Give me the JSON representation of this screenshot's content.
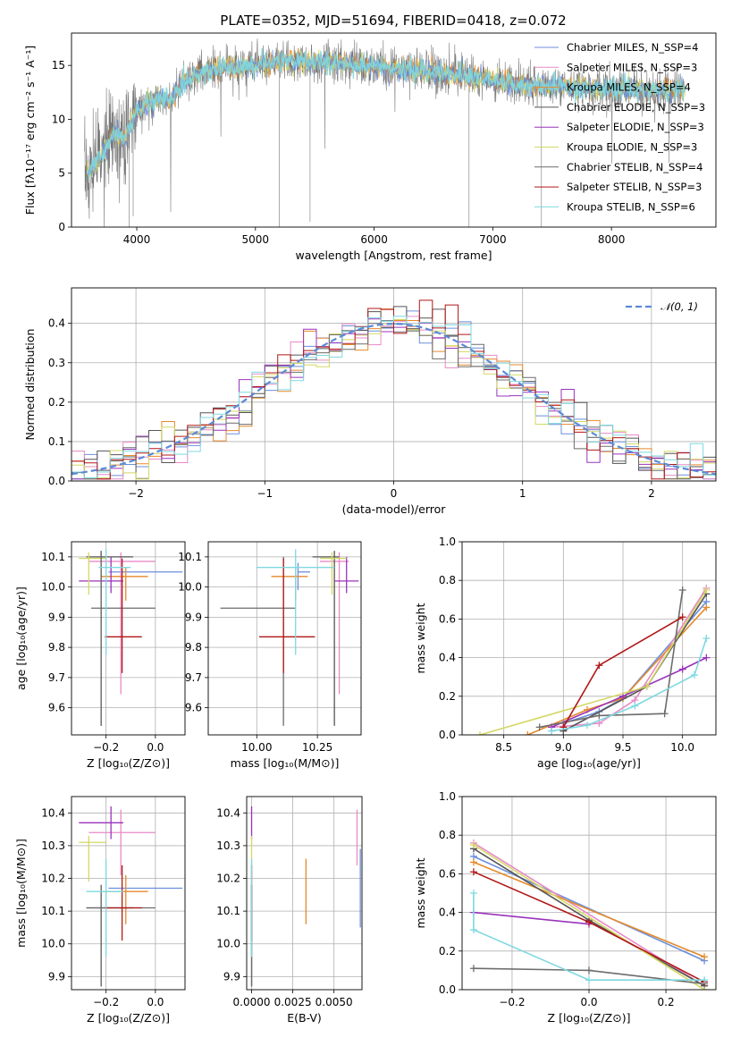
{
  "colors": [
    "#6b8fdc",
    "#e88ac7",
    "#e58a2c",
    "#555555",
    "#9933bb",
    "#d4d864",
    "#6c6c6c",
    "#b01818",
    "#7fd8e0"
  ],
  "chart_data": [
    {
      "id": "spectrum",
      "type": "line",
      "title": "PLATE=0352, MJD=51694, FIBERID=0418, z=0.072",
      "xlabel": "wavelength [Angstrom, rest frame]",
      "ylabel": "Flux [fλ10⁻¹⁷ erg cm⁻² s⁻¹ A⁻¹]",
      "xlim": [
        3450,
        8880
      ],
      "ylim": [
        0,
        18
      ],
      "xticks": [
        "4000",
        "5000",
        "6000",
        "7000",
        "8000"
      ],
      "yticks": [
        "0",
        "5",
        "10",
        "15"
      ],
      "grid": false,
      "legend_position": "right",
      "legend": [
        "Chabrier MILES, N_SSP=4",
        "Salpeter MILES, N_SSP=3",
        "Kroupa MILES, N_SSP=4",
        "Chabrier ELODIE, N_SSP=3",
        "Salpeter ELODIE, N_SSP=3",
        "Kroupa ELODIE, N_SSP=3",
        "Chabrier STELIB, N_SSP=4",
        "Salpeter STELIB, N_SSP=3",
        "Kroupa STELIB, N_SSP=6"
      ],
      "continuum_x": [
        3550,
        3700,
        3800,
        3900,
        4000,
        4100,
        4200,
        4300,
        4400,
        4500,
        4700,
        5000,
        5300,
        5500,
        5800,
        6000,
        6300,
        6500,
        6800,
        7000,
        7200,
        7400,
        7600,
        7800,
        8000,
        8200,
        8400,
        8600
      ],
      "continuum_y": [
        4.5,
        6.5,
        8.5,
        8.2,
        10.8,
        11.5,
        12.0,
        11.8,
        13.6,
        14.2,
        14.8,
        15.0,
        15.5,
        15.3,
        15.2,
        14.8,
        14.6,
        14.3,
        14.0,
        13.6,
        13.2,
        13.1,
        13.0,
        12.9,
        12.8,
        12.8,
        12.6,
        12.9
      ]
    },
    {
      "id": "residual-hist",
      "type": "histogram",
      "xlabel": "(data-model)/error",
      "ylabel": "Normed distribution",
      "xlim": [
        -2.5,
        2.5
      ],
      "ylim": [
        0,
        0.49
      ],
      "xticks": [
        "−2",
        "−1",
        "0",
        "1",
        "2"
      ],
      "yticks": [
        "0.0",
        "0.1",
        "0.2",
        "0.3",
        "0.4"
      ],
      "grid": true,
      "legend_position": "upper right",
      "legend": [
        "𝒩(0, 1)"
      ],
      "bin_width": 0.1
    },
    {
      "id": "age-vs-Z",
      "type": "errorbar",
      "xlabel": "Z [log₁₀(Z/Z⊙)]",
      "ylabel": "age  [log₁₀(age/yr)]",
      "xlim": [
        -0.34,
        0.12
      ],
      "ylim": [
        9.51,
        10.15
      ],
      "xticks": [
        "−0.2",
        "0.0"
      ],
      "yticks": [
        "9.6",
        "9.7",
        "9.8",
        "9.9",
        "10.0",
        "10.1"
      ],
      "grid": true,
      "points": [
        {
          "x": -0.04,
          "y": 10.05,
          "xerr": [
            0.15,
            0.15
          ],
          "yerr": [
            0.0,
            0.0
          ],
          "c": 0
        },
        {
          "x": -0.14,
          "y": 10.085,
          "xerr": [
            0.13,
            0.14
          ],
          "yerr": [
            0.44,
            0.03
          ],
          "c": 1
        },
        {
          "x": -0.12,
          "y": 10.035,
          "xerr": [
            0.1,
            0.09
          ],
          "yerr": [
            0.08,
            0.03
          ],
          "c": 2
        },
        {
          "x": -0.22,
          "y": 10.1,
          "xerr": [
            0.06,
            0.13
          ],
          "yerr": [
            0.56,
            0.02
          ],
          "c": 3
        },
        {
          "x": -0.18,
          "y": 10.02,
          "xerr": [
            0.13,
            0.05
          ],
          "yerr": [
            0.04,
            0.08
          ],
          "c": 4
        },
        {
          "x": -0.27,
          "y": 10.095,
          "xerr": [
            0.04,
            0.07
          ],
          "yerr": [
            0.12,
            0.02
          ],
          "c": 5
        },
        {
          "x": -0.22,
          "y": 9.93,
          "xerr": [
            0.04,
            0.22
          ],
          "yerr": [
            0.39,
            0.17
          ],
          "c": 6
        },
        {
          "x": -0.135,
          "y": 9.835,
          "xerr": [
            0.07,
            0.08
          ],
          "yerr": [
            0.12,
            0.26
          ],
          "c": 7
        },
        {
          "x": -0.2,
          "y": 10.065,
          "xerr": [
            0.03,
            0.1
          ],
          "yerr": [
            0.29,
            0.06
          ],
          "c": 8
        }
      ]
    },
    {
      "id": "age-vs-mass",
      "type": "errorbar",
      "xlabel": "mass [log₁₀(M/M⊙)]",
      "xlim": [
        9.8,
        10.43
      ],
      "ylim": [
        9.51,
        10.15
      ],
      "xticks": [
        "10.00",
        "10.25"
      ],
      "yticks": [
        "9.6",
        "9.7",
        "9.8",
        "9.9",
        "10.0",
        "10.1"
      ],
      "grid": true,
      "points": [
        {
          "x": 10.17,
          "y": 10.05,
          "xerr": [
            0.0,
            0.05
          ],
          "yerr": [
            0.06,
            0.03
          ],
          "c": 0
        },
        {
          "x": 10.34,
          "y": 10.085,
          "xerr": [
            0.08,
            0.04
          ],
          "yerr": [
            0.44,
            0.03
          ],
          "c": 1
        },
        {
          "x": 10.16,
          "y": 10.035,
          "xerr": [
            0.1,
            0.05
          ],
          "yerr": [
            0.08,
            0.03
          ],
          "c": 2
        },
        {
          "x": 10.32,
          "y": 10.1,
          "xerr": [
            0.09,
            0.02
          ],
          "yerr": [
            0.56,
            0.02
          ],
          "c": 3
        },
        {
          "x": 10.37,
          "y": 10.02,
          "xerr": [
            0.05,
            0.05
          ],
          "yerr": [
            0.04,
            0.08
          ],
          "c": 4
        },
        {
          "x": 10.31,
          "y": 10.095,
          "xerr": [
            0.05,
            0.06
          ],
          "yerr": [
            0.12,
            0.02
          ],
          "c": 5
        },
        {
          "x": 10.11,
          "y": 9.93,
          "xerr": [
            0.26,
            0.05
          ],
          "yerr": [
            0.39,
            0.17
          ],
          "c": 6
        },
        {
          "x": 10.11,
          "y": 9.835,
          "xerr": [
            0.1,
            0.13
          ],
          "yerr": [
            0.12,
            0.26
          ],
          "c": 7
        },
        {
          "x": 10.16,
          "y": 10.065,
          "xerr": [
            0.16,
            0.16
          ],
          "yerr": [
            0.29,
            0.06
          ],
          "c": 8
        }
      ]
    },
    {
      "id": "mass-weight-vs-age",
      "type": "line",
      "xlabel": "age  [log₁₀(age/yr)]",
      "ylabel": "mass weight",
      "xlim": [
        8.15,
        10.28
      ],
      "ylim": [
        0,
        1
      ],
      "xticks": [
        "8.5",
        "9.0",
        "9.5",
        "10.0"
      ],
      "yticks": [
        "0.0",
        "0.2",
        "0.4",
        "0.6",
        "0.8",
        "1.0"
      ],
      "grid": true,
      "series": [
        {
          "c": 0,
          "x": [
            9.0,
            9.3,
            9.5,
            10.2
          ],
          "y": [
            0.06,
            0.12,
            0.19,
            0.69
          ]
        },
        {
          "c": 1,
          "x": [
            8.9,
            9.3,
            9.6,
            10.2
          ],
          "y": [
            0.04,
            0.06,
            0.18,
            0.76
          ]
        },
        {
          "c": 2,
          "x": [
            8.7,
            9.2,
            9.5,
            10.2
          ],
          "y": [
            0.0,
            0.13,
            0.19,
            0.66
          ]
        },
        {
          "c": 3,
          "x": [
            9.0,
            9.7,
            10.2
          ],
          "y": [
            0.02,
            0.25,
            0.73
          ]
        },
        {
          "c": 4,
          "x": [
            8.9,
            9.5,
            10.0,
            10.2
          ],
          "y": [
            0.04,
            0.2,
            0.34,
            0.4
          ]
        },
        {
          "c": 5,
          "x": [
            8.3,
            9.7,
            10.2
          ],
          "y": [
            0.0,
            0.25,
            0.75
          ]
        },
        {
          "c": 6,
          "x": [
            8.8,
            9.3,
            9.85,
            10.0
          ],
          "y": [
            0.04,
            0.1,
            0.11,
            0.75
          ]
        },
        {
          "c": 7,
          "x": [
            9.0,
            9.3,
            10.0
          ],
          "y": [
            0.04,
            0.36,
            0.61
          ]
        },
        {
          "c": 8,
          "x": [
            8.9,
            9.2,
            9.6,
            10.1,
            10.2
          ],
          "y": [
            0.02,
            0.05,
            0.15,
            0.31,
            0.5
          ]
        }
      ]
    },
    {
      "id": "mass-vs-Z",
      "type": "errorbar",
      "xlabel": "Z [log₁₀(Z/Z⊙)]",
      "ylabel": "mass [log₁₀(M/M⊙)]",
      "xlim": [
        -0.34,
        0.12
      ],
      "ylim": [
        9.86,
        10.45
      ],
      "xticks": [
        "−0.2",
        "0.0"
      ],
      "yticks": [
        "9.9",
        "10.0",
        "10.1",
        "10.2",
        "10.3",
        "10.4"
      ],
      "grid": true,
      "points": [
        {
          "x": -0.04,
          "y": 10.17,
          "xerr": [
            0.15,
            0.15
          ],
          "yerr": [
            0.0,
            0.0
          ],
          "c": 0
        },
        {
          "x": -0.14,
          "y": 10.34,
          "xerr": [
            0.13,
            0.14
          ],
          "yerr": [
            0.13,
            0.07
          ],
          "c": 1
        },
        {
          "x": -0.12,
          "y": 10.16,
          "xerr": [
            0.1,
            0.09
          ],
          "yerr": [
            0.1,
            0.05
          ],
          "c": 2
        },
        {
          "x": -0.22,
          "y": 10.11,
          "xerr": [
            0.06,
            0.13
          ],
          "yerr": [
            0.24,
            0.07
          ],
          "c": 3
        },
        {
          "x": -0.18,
          "y": 10.37,
          "xerr": [
            0.13,
            0.05
          ],
          "yerr": [
            0.05,
            0.05
          ],
          "c": 4
        },
        {
          "x": -0.27,
          "y": 10.31,
          "xerr": [
            0.04,
            0.07
          ],
          "yerr": [
            0.12,
            0.02
          ],
          "c": 5
        },
        {
          "x": -0.22,
          "y": 10.11,
          "xerr": [
            0.04,
            0.22
          ],
          "yerr": [
            0.24,
            0.07
          ],
          "c": 6
        },
        {
          "x": -0.135,
          "y": 10.11,
          "xerr": [
            0.07,
            0.08
          ],
          "yerr": [
            0.1,
            0.13
          ],
          "c": 7
        },
        {
          "x": -0.2,
          "y": 10.16,
          "xerr": [
            0.08,
            0.07
          ],
          "yerr": [
            0.2,
            0.1
          ],
          "c": 8
        }
      ]
    },
    {
      "id": "mass-vs-ebv",
      "type": "errorbar",
      "xlabel": "E(B-V)",
      "xlim": [
        -0.0003,
        0.0067
      ],
      "ylim": [
        9.86,
        10.45
      ],
      "xticks": [
        "0.0000",
        "0.0025",
        "0.0050"
      ],
      "yticks": [
        "9.9",
        "10.0",
        "10.1",
        "10.2",
        "10.3",
        "10.4"
      ],
      "grid": true,
      "points": [
        {
          "x": 0.0066,
          "y": 10.17,
          "xerr": [
            0,
            0
          ],
          "yerr": [
            0.12,
            0.12
          ],
          "c": 0
        },
        {
          "x": 0.0064,
          "y": 10.34,
          "xerr": [
            0,
            0
          ],
          "yerr": [
            0.1,
            0.07
          ],
          "c": 1
        },
        {
          "x": 0.0033,
          "y": 10.16,
          "xerr": [
            0,
            0
          ],
          "yerr": [
            0.1,
            0.1
          ],
          "c": 2
        },
        {
          "x": 0.0,
          "y": 10.11,
          "xerr": [
            0,
            0
          ],
          "yerr": [
            0.24,
            0.07
          ],
          "c": 3
        },
        {
          "x": 0.0,
          "y": 10.37,
          "xerr": [
            0,
            0
          ],
          "yerr": [
            0.05,
            0.05
          ],
          "c": 4
        },
        {
          "x": 0.0,
          "y": 10.31,
          "xerr": [
            0,
            0
          ],
          "yerr": [
            0.12,
            0.02
          ],
          "c": 5
        },
        {
          "x": 0.0,
          "y": 10.11,
          "xerr": [
            0,
            0
          ],
          "yerr": [
            0.24,
            0.07
          ],
          "c": 6
        },
        {
          "x": 0.0,
          "y": 10.11,
          "xerr": [
            0,
            0
          ],
          "yerr": [
            0.1,
            0.13
          ],
          "c": 7
        },
        {
          "x": 0.0,
          "y": 10.16,
          "xerr": [
            0,
            0
          ],
          "yerr": [
            0.2,
            0.1
          ],
          "c": 8
        }
      ]
    },
    {
      "id": "mass-weight-vs-Z",
      "type": "line",
      "xlabel": "Z [log₁₀(Z/Z⊙)]",
      "ylabel": "mass weight",
      "xlim": [
        -0.33,
        0.33
      ],
      "ylim": [
        0,
        1
      ],
      "xticks": [
        "−0.2",
        "0.0",
        "0.2"
      ],
      "yticks": [
        "0.0",
        "0.2",
        "0.4",
        "0.6",
        "0.8",
        "1.0"
      ],
      "grid": true,
      "series": [
        {
          "c": 0,
          "x": [
            -0.3,
            0.3
          ],
          "y": [
            0.69,
            0.15
          ]
        },
        {
          "c": 1,
          "x": [
            -0.3,
            0.3
          ],
          "y": [
            0.76,
            0.02
          ]
        },
        {
          "c": 2,
          "x": [
            -0.3,
            0.3
          ],
          "y": [
            0.66,
            0.17
          ]
        },
        {
          "c": 3,
          "x": [
            -0.3,
            0.0,
            0.3
          ],
          "y": [
            0.73,
            0.36,
            0.02
          ]
        },
        {
          "c": 4,
          "x": [
            -0.3,
            0.0
          ],
          "y": [
            0.4,
            0.34
          ]
        },
        {
          "c": 5,
          "x": [
            -0.3,
            0.3
          ],
          "y": [
            0.75,
            0.0
          ]
        },
        {
          "c": 6,
          "x": [
            -0.3,
            0.0,
            0.3
          ],
          "y": [
            0.11,
            0.1,
            0.03
          ]
        },
        {
          "c": 7,
          "x": [
            -0.3,
            0.0,
            0.3
          ],
          "y": [
            0.61,
            0.35,
            0.04
          ]
        },
        {
          "c": 8,
          "x": [
            -0.3,
            -0.3,
            0.0,
            0.3
          ],
          "y": [
            0.5,
            0.31,
            0.05,
            0.05
          ]
        }
      ]
    }
  ]
}
